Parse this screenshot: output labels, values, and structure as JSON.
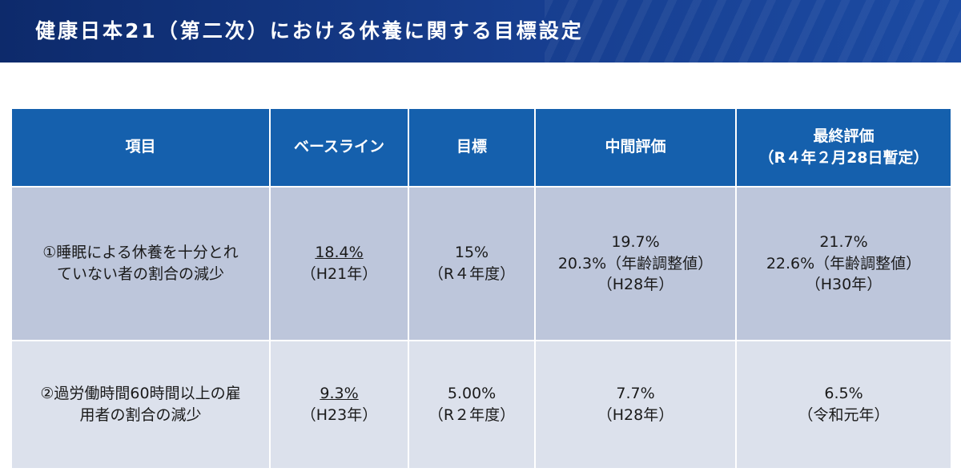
{
  "header": {
    "title": "健康日本21（第二次）における休養に関する目標設定"
  },
  "table": {
    "headers": [
      "項目",
      "ベースライン",
      "目標",
      "中間評価",
      "最終評価",
      "（R４年２月28日暫定）"
    ],
    "rows": [
      {
        "item": [
          "①睡眠による休養を十分とれ",
          "ていない者の割合の減少"
        ],
        "baseline": [
          "18.4%",
          "（H21年）"
        ],
        "target": [
          "15%",
          "（R４年度）"
        ],
        "interim": [
          "19.7%",
          "20.3%（年齢調整値）",
          "（H28年）"
        ],
        "final": [
          "21.7%",
          "22.6%（年齢調整値）",
          "（H30年）"
        ]
      },
      {
        "item": [
          "②過労働時間60時間以上の雇",
          "用者の割合の減少"
        ],
        "baseline": [
          "9.3%",
          "（H23年）"
        ],
        "target": [
          "5.00%",
          "（R２年度）"
        ],
        "interim": [
          "7.7%",
          "（H28年）"
        ],
        "final": [
          "6.5%",
          "（令和元年）"
        ]
      }
    ]
  }
}
